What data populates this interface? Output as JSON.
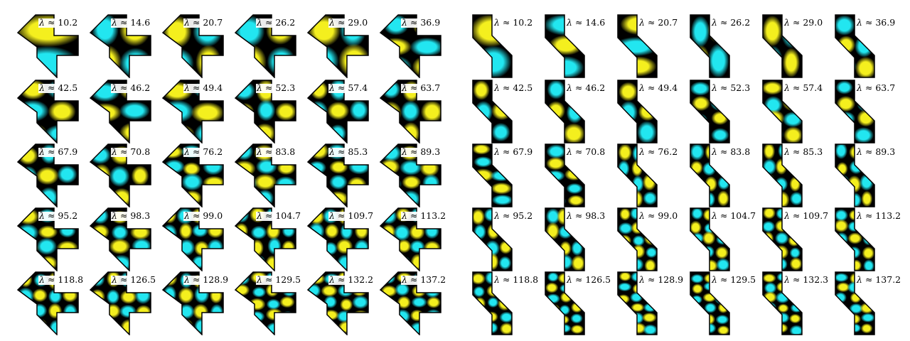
{
  "panels": [
    {
      "id": "left",
      "eigenvalues": [
        [
          "10.2",
          "14.6",
          "20.7",
          "26.2",
          "29.0",
          "36.9"
        ],
        [
          "42.5",
          "46.2",
          "49.4",
          "52.3",
          "57.4",
          "63.7"
        ],
        [
          "67.9",
          "70.8",
          "76.2",
          "83.8",
          "85.3",
          "89.3"
        ],
        [
          "95.2",
          "98.3",
          "99.0",
          "104.7",
          "109.7",
          "113.2"
        ],
        [
          "118.8",
          "126.5",
          "128.9",
          "129.5",
          "132.2",
          "137.2"
        ]
      ]
    },
    {
      "id": "right",
      "eigenvalues": [
        [
          "10.2",
          "14.6",
          "20.7",
          "26.2",
          "29.0",
          "36.9"
        ],
        [
          "42.5",
          "46.2",
          "49.4",
          "52.3",
          "57.4",
          "63.7"
        ],
        [
          "67.9",
          "70.8",
          "76.2",
          "83.8",
          "85.3",
          "89.3"
        ],
        [
          "95.2",
          "98.3",
          "99.0",
          "104.7",
          "109.7",
          "113.2"
        ],
        [
          "118.8",
          "126.5",
          "128.9",
          "129.5",
          "132.3",
          "137.2"
        ]
      ]
    }
  ],
  "label_prefix": "λ ≈ ",
  "colors": {
    "positive": "#f4ef1e",
    "negative": "#22e6f0",
    "nodal": "#000000",
    "background": "#ffffff"
  }
}
